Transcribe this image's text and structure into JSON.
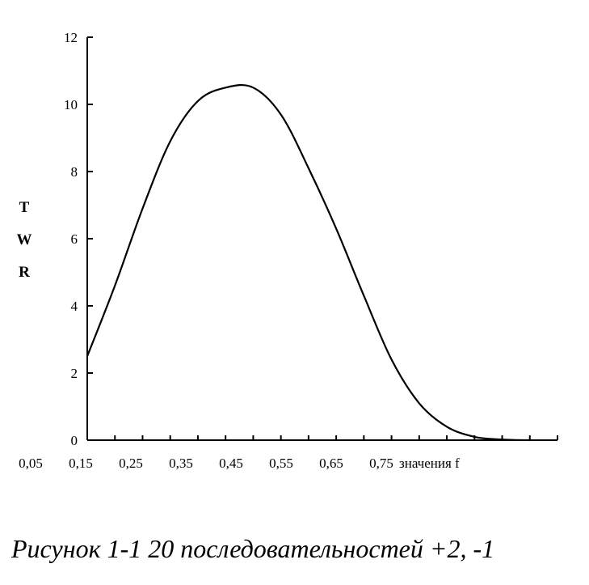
{
  "chart_data": {
    "type": "line",
    "title": "",
    "xlabel": "значения f",
    "ylabel": "TWR",
    "ylabel_letters": [
      "T",
      "W",
      "R"
    ],
    "x_ticks": [
      {
        "value": 0.05,
        "label": "0,05"
      },
      {
        "value": 0.15,
        "label": "0,15"
      },
      {
        "value": 0.25,
        "label": "0,25"
      },
      {
        "value": 0.35,
        "label": "0,35"
      },
      {
        "value": 0.45,
        "label": "0,45"
      },
      {
        "value": 0.55,
        "label": "0,55"
      },
      {
        "value": 0.65,
        "label": "0,65"
      },
      {
        "value": 0.75,
        "label": "0,75"
      }
    ],
    "y_ticks": [
      0,
      2,
      4,
      6,
      8,
      10,
      12
    ],
    "xlim": [
      0.15,
      1.0
    ],
    "ylim": [
      0,
      12
    ],
    "grid": false,
    "legend": "none",
    "line_color": "#000000",
    "series": [
      {
        "x": [
          0.15,
          0.2,
          0.25,
          0.3,
          0.35,
          0.4,
          0.45,
          0.5,
          0.55,
          0.6,
          0.65,
          0.7,
          0.75,
          0.8,
          0.85,
          0.9,
          0.95
        ],
        "y": [
          2.5,
          4.6,
          6.9,
          8.9,
          10.1,
          10.5,
          10.5,
          9.7,
          8.1,
          6.3,
          4.3,
          2.4,
          1.1,
          0.4,
          0.1,
          0.02,
          0.0
        ]
      }
    ]
  },
  "caption": "Рисунок 1-1 20 последовательностей +2, -1"
}
